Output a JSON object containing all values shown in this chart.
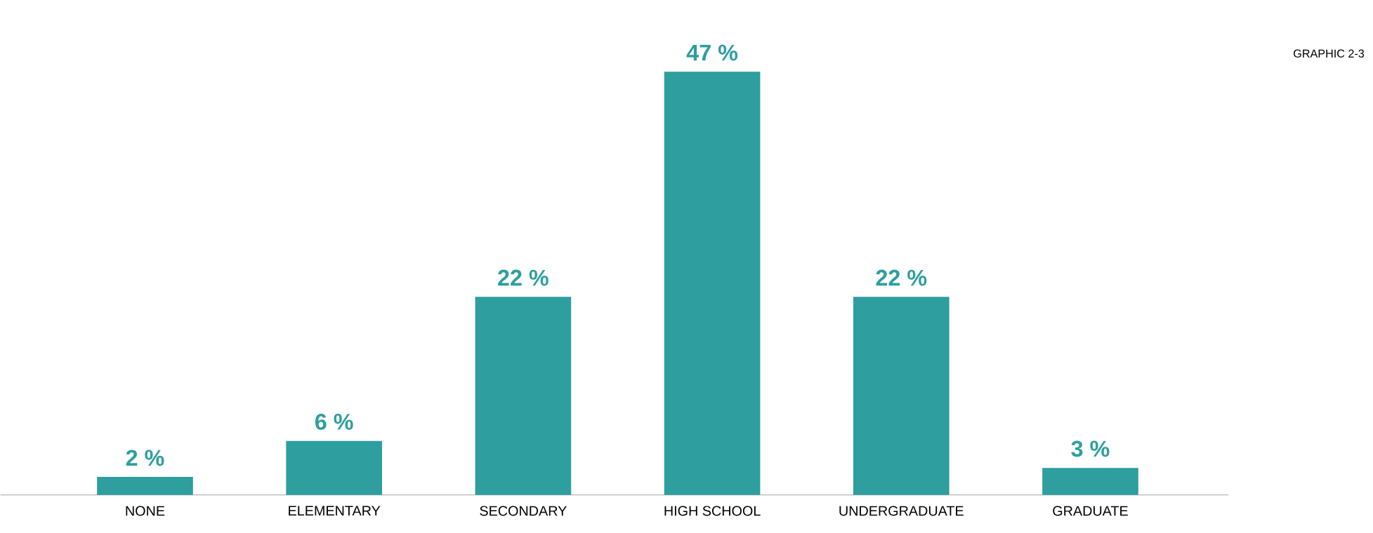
{
  "chart_data": {
    "type": "bar",
    "categories": [
      "NONE",
      "ELEMENTARY",
      "SECONDARY",
      "HIGH SCHOOL",
      "UNDERGRADUATE",
      "GRADUATE"
    ],
    "values": [
      2,
      6,
      22,
      47,
      22,
      3
    ],
    "value_labels": [
      "2 %",
      "6 %",
      "22 %",
      "47 %",
      "22 %",
      "3 %"
    ],
    "color": "#2e9e9e",
    "annotations": [
      "GRAPHIC 2-3"
    ]
  }
}
